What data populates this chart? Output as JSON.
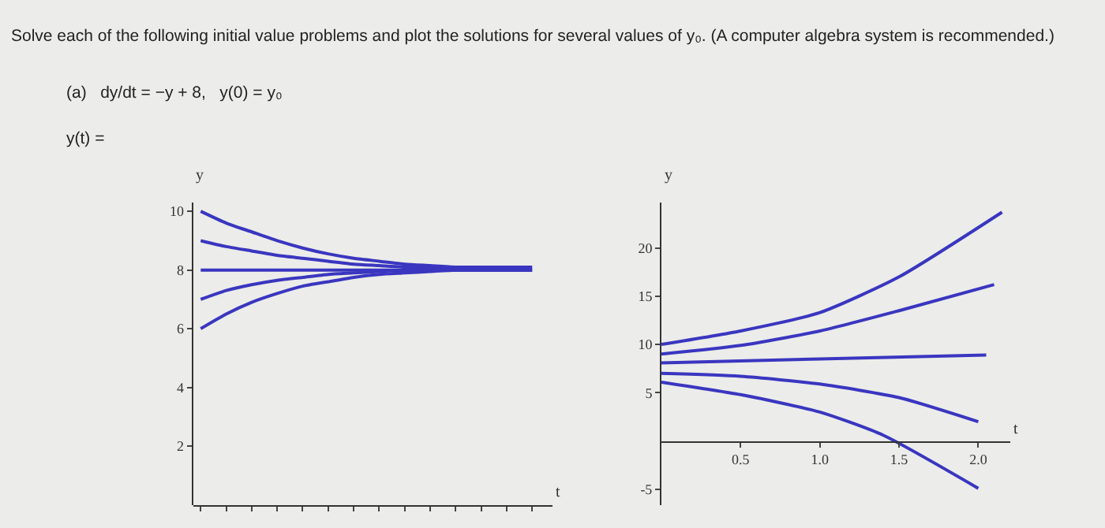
{
  "chart_data": [
    {
      "type": "line",
      "title": "Solve each of the following initial value problems and plot the solutions for several values of y₀. (A computer algebra system is recommended.)",
      "subtitle": "(a)   dy/dt = −y + 8,   y(0) = y₀",
      "annotations": [
        "y(t) ="
      ],
      "xlabel": "t",
      "ylabel": "y",
      "categories": [
        null,
        null,
        null,
        null,
        null,
        null,
        null,
        null,
        null,
        null,
        null,
        null,
        null,
        null
      ],
      "series": [
        {
          "color": "#3a36c0",
          "values": [
            10,
            9.6,
            9.3,
            9.0,
            8.75,
            8.55,
            8.4,
            8.3,
            8.2,
            8.15,
            8.1,
            8.1,
            8.1,
            8.1
          ]
        },
        {
          "color": "#3a36c0",
          "values": [
            9,
            8.8,
            8.65,
            8.5,
            8.4,
            8.3,
            8.2,
            8.15,
            8.1,
            8.1,
            8.1,
            8.1,
            8.1,
            8.1
          ]
        },
        {
          "color": "#3a36c0",
          "values": [
            8,
            8,
            8,
            8,
            8,
            8,
            8,
            8,
            8,
            8,
            8,
            8,
            8,
            8
          ]
        },
        {
          "color": "#3a36c0",
          "values": [
            7,
            7.3,
            7.5,
            7.65,
            7.75,
            7.85,
            7.9,
            7.95,
            8,
            8,
            8,
            8,
            8,
            8
          ]
        },
        {
          "color": "#3a36c0",
          "values": [
            6,
            6.5,
            6.9,
            7.2,
            7.45,
            7.6,
            7.75,
            7.85,
            7.9,
            7.95,
            8,
            8,
            8,
            8
          ]
        }
      ],
      "ylim": [
        0,
        10.3
      ],
      "yticks": [
        2,
        4,
        6,
        8,
        10
      ],
      "tick_labels": "y",
      "grid": false,
      "marker": "none",
      "line_style": "solid"
    },
    {
      "type": "line",
      "xlabel": "t",
      "ylabel": "y",
      "series": [
        {
          "color": "#3a36c0",
          "x": [
            0,
            0.5,
            1.0,
            1.5,
            2.15
          ],
          "values": [
            10,
            11.4,
            13.3,
            17,
            23.7
          ]
        },
        {
          "color": "#3a36c0",
          "x": [
            0,
            0.5,
            1.0,
            1.5,
            2.1
          ],
          "values": [
            9,
            9.9,
            11.4,
            13.5,
            16.2
          ]
        },
        {
          "color": "#3a36c0",
          "x": [
            0,
            1.0,
            2.05
          ],
          "values": [
            8.1,
            8.5,
            8.9
          ]
        },
        {
          "color": "#3a36c0",
          "x": [
            0,
            0.5,
            1.0,
            1.5,
            2.0
          ],
          "values": [
            7,
            6.7,
            5.9,
            4.5,
            2.0
          ]
        },
        {
          "color": "#3a36c0",
          "x": [
            0,
            0.5,
            1.0,
            1.4,
            2.0
          ],
          "values": [
            6.1,
            4.8,
            3.0,
            0.6,
            -4.9
          ]
        }
      ],
      "xlim": [
        0,
        2.2
      ],
      "xticks": [
        0.5,
        {
          "value": 1,
          "label": "1.0"
        },
        1.5,
        {
          "value": 2,
          "label": "2.0"
        }
      ],
      "ylim": [
        -6.6,
        24.7
      ],
      "yticks": [
        -5,
        5,
        10,
        15,
        20
      ],
      "grid": false,
      "marker": "none",
      "line_style": "solid"
    }
  ]
}
